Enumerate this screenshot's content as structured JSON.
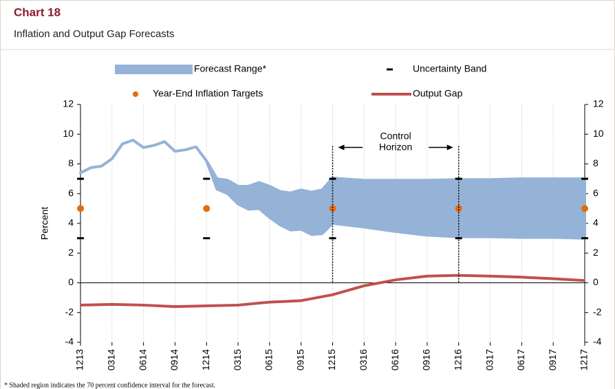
{
  "chart_data": {
    "type": "line",
    "title": "Chart 18",
    "subtitle": "Inflation and Output Gap Forecasts",
    "y_label": "Percent",
    "footnote": "* Shaded region indicates the 70 percent confidence interval for the forecast.",
    "xlim": [
      0,
      48
    ],
    "xticks": [
      {
        "value": 0,
        "label": "1213"
      },
      {
        "value": 3,
        "label": "0314"
      },
      {
        "value": 6,
        "label": "0614"
      },
      {
        "value": 9,
        "label": "0914"
      },
      {
        "value": 12,
        "label": "1214"
      },
      {
        "value": 15,
        "label": "0315"
      },
      {
        "value": 18,
        "label": "0615"
      },
      {
        "value": 21,
        "label": "0915"
      },
      {
        "value": 24,
        "label": "1215"
      },
      {
        "value": 27,
        "label": "0316"
      },
      {
        "value": 30,
        "label": "0616"
      },
      {
        "value": 33,
        "label": "0916"
      },
      {
        "value": 36,
        "label": "1216"
      },
      {
        "value": 39,
        "label": "0317"
      },
      {
        "value": 42,
        "label": "0617"
      },
      {
        "value": 45,
        "label": "0917"
      },
      {
        "value": 48,
        "label": "1217"
      }
    ],
    "ylim": [
      -4,
      12
    ],
    "yticks": [
      -4,
      -2,
      0,
      2,
      4,
      6,
      8,
      10,
      12
    ],
    "y2lim": [
      -4,
      12
    ],
    "y2ticks": [
      -4,
      -2,
      0,
      2,
      4,
      6,
      8,
      10,
      12
    ],
    "grid": true,
    "annotation": {
      "lines": [
        "Control",
        "Horizon"
      ],
      "x": [
        24,
        36
      ],
      "top": 9.2
    },
    "series": [
      {
        "name": "Forecast Range*",
        "kind": "area",
        "color": "#95b3d7",
        "x": [
          0,
          1,
          2,
          3,
          4,
          5,
          6,
          7,
          8,
          9,
          10,
          11,
          12,
          13,
          14,
          15,
          16,
          17,
          18,
          19,
          20,
          21,
          22,
          23,
          24,
          27,
          30,
          33,
          36,
          39,
          42,
          45,
          48
        ],
        "values": [
          7.4,
          7.75,
          7.85,
          8.35,
          9.35,
          9.6,
          9.1,
          9.25,
          9.5,
          8.85,
          8.95,
          9.15,
          8.2,
          7.0,
          6.9,
          6.5,
          6.5,
          6.75,
          6.5,
          6.15,
          6.05,
          6.25,
          6.1,
          6.25,
          7.05,
          6.9,
          6.9,
          6.9,
          6.95,
          6.95,
          7.0,
          7.0,
          7.0
        ],
        "lower": [
          7.4,
          7.75,
          7.85,
          8.35,
          9.35,
          9.6,
          9.1,
          9.25,
          9.5,
          8.85,
          8.95,
          9.15,
          8.2,
          6.3,
          6.0,
          5.3,
          4.95,
          5.0,
          4.4,
          3.9,
          3.55,
          3.6,
          3.25,
          3.3,
          4.0,
          3.75,
          3.45,
          3.2,
          3.1,
          3.1,
          3.05,
          3.05,
          3.0
        ]
      },
      {
        "name": "Uncertainty Band",
        "kind": "dash",
        "color": "#000000",
        "x": [
          0,
          0,
          12,
          12,
          24,
          24,
          36,
          36,
          48,
          48
        ],
        "values": [
          7,
          3,
          7,
          3,
          7,
          3,
          7,
          3,
          7,
          3
        ]
      },
      {
        "name": "Year-End Inflation Targets",
        "kind": "dot",
        "color": "#e46c0a",
        "x": [
          0,
          12,
          24,
          36,
          48
        ],
        "values": [
          5,
          5,
          5,
          5,
          5
        ]
      },
      {
        "name": "Output Gap",
        "kind": "line",
        "color": "#c0504d",
        "x": [
          0,
          3,
          6,
          9,
          12,
          15,
          18,
          21,
          24,
          27,
          30,
          33,
          36,
          39,
          42,
          45,
          48
        ],
        "values": [
          -1.5,
          -1.45,
          -1.5,
          -1.6,
          -1.55,
          -1.5,
          -1.3,
          -1.2,
          -0.8,
          -0.2,
          0.2,
          0.45,
          0.5,
          0.45,
          0.38,
          0.28,
          0.15
        ]
      }
    ]
  }
}
